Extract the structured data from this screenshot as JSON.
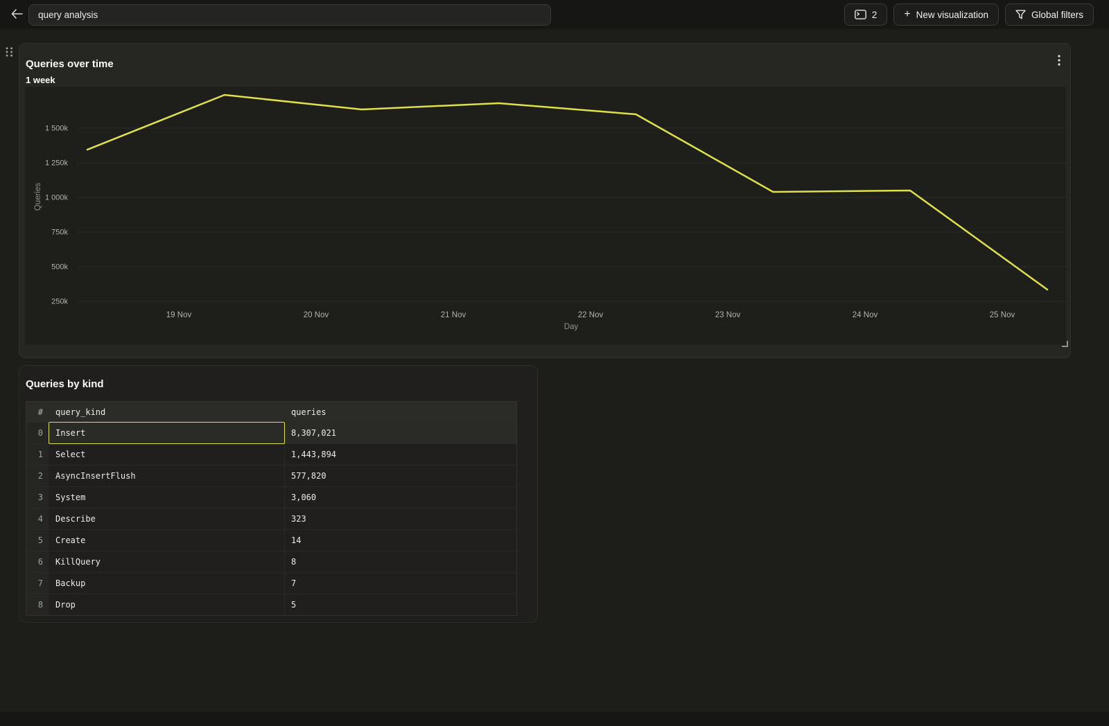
{
  "colors": {
    "accent_yellow": "#dfe14b",
    "topbar_bg": "#161614",
    "page_bg": "#1d1d1a",
    "chart_panel_bg": "#262623",
    "plot_bg": "#1e1e1b",
    "table_panel_bg": "#201f1d",
    "gridline": "#2d2d2a"
  },
  "icons": {
    "back-arrow-icon": "left arrow",
    "sql-console-icon": "console window with prompt",
    "plus-icon": "+",
    "funnel-icon": "filter funnel",
    "drag-handle-icon": "grip dots 2x3",
    "kebab-menu-icon": "three vertical dots",
    "resize-handle-icon": "corner resize bracket"
  },
  "top_bar": {
    "dashboard_title_value": "query analysis",
    "console_tab_count": "2",
    "new_visualization_label": "New visualization",
    "global_filters_label": "Global filters"
  },
  "chart_data": {
    "type": "line",
    "title": "Queries over time",
    "subtitle": "1 week",
    "xlabel": "Day",
    "ylabel": "Queries",
    "x_tick_labels": [
      "19 Nov",
      "20 Nov",
      "21 Nov",
      "22 Nov",
      "23 Nov",
      "24 Nov",
      "25 Nov"
    ],
    "y_axis": {
      "top_value": 1500000,
      "step": 250000,
      "tick_values": [
        1500000,
        1250000,
        1000000,
        750000,
        500000,
        250000
      ],
      "tick_labels": [
        "1 500k",
        "1 250k",
        "1 000k",
        "750k",
        "500k",
        "250k"
      ]
    },
    "series": [
      {
        "name": "Queries",
        "color": "#dfe14b",
        "values": [
          1345000,
          1740000,
          1635000,
          1680000,
          1600000,
          1040000,
          1050000,
          335000
        ]
      }
    ],
    "grid": true,
    "legend": false
  },
  "table_panel": {
    "title": "Queries by kind",
    "table": {
      "index_header": "#",
      "columns": [
        "query_kind",
        "queries"
      ],
      "rows": [
        {
          "index": "0",
          "query_kind": "Insert",
          "queries": "8,307,021",
          "selected": true
        },
        {
          "index": "1",
          "query_kind": "Select",
          "queries": "1,443,894"
        },
        {
          "index": "2",
          "query_kind": "AsyncInsertFlush",
          "queries": "577,820"
        },
        {
          "index": "3",
          "query_kind": "System",
          "queries": "3,060"
        },
        {
          "index": "4",
          "query_kind": "Describe",
          "queries": "323"
        },
        {
          "index": "5",
          "query_kind": "Create",
          "queries": "14"
        },
        {
          "index": "6",
          "query_kind": "KillQuery",
          "queries": "8"
        },
        {
          "index": "7",
          "query_kind": "Backup",
          "queries": "7"
        },
        {
          "index": "8",
          "query_kind": "Drop",
          "queries": "5"
        }
      ]
    }
  }
}
